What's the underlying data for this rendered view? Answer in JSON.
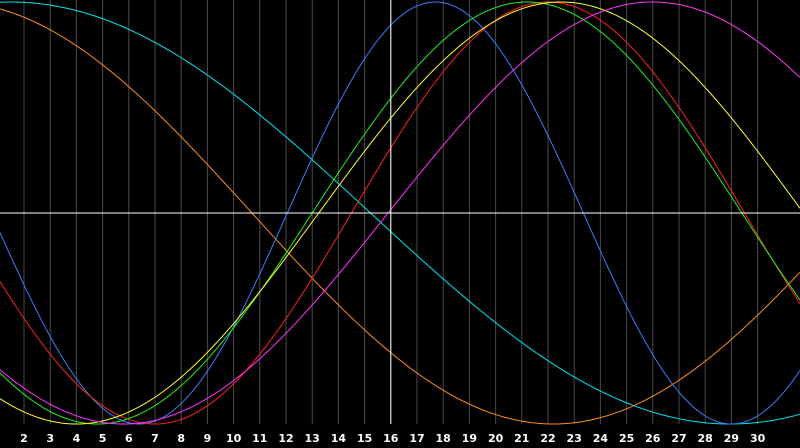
{
  "chart_data": {
    "type": "line",
    "title": "",
    "xlabel": "",
    "ylabel": "",
    "xlim": [
      1.1,
      31.5
    ],
    "ylim": [
      -1,
      1
    ],
    "x_ticks": [
      2,
      3,
      4,
      5,
      6,
      7,
      8,
      9,
      10,
      11,
      12,
      13,
      14,
      15,
      16,
      17,
      18,
      19,
      20,
      21,
      22,
      23,
      24,
      25,
      26,
      27,
      28,
      29,
      30
    ],
    "x_tick_labels": [
      "2",
      "3",
      "4",
      "5",
      "6",
      "7",
      "8",
      "9",
      "10",
      "11",
      "12",
      "13",
      "14",
      "15",
      "16",
      "17",
      "18",
      "19",
      "20",
      "21",
      "22",
      "23",
      "24",
      "25",
      "26",
      "27",
      "28",
      "29",
      "30"
    ],
    "crosshair": {
      "x": 16,
      "y": 0
    },
    "grid": true,
    "background": "#000000",
    "grid_color": "#4a4a4a",
    "crosshair_color": "#ffffff",
    "series": [
      {
        "color": "#00e5ee",
        "period": 54.9,
        "peak_day": 1.5
      },
      {
        "color": "#ff8c1a",
        "period": 46.0,
        "peak_day": -0.8
      },
      {
        "color": "#3a7dff",
        "period": 22.6,
        "peak_day": 17.7
      },
      {
        "color": "#ff2020",
        "period": 30.0,
        "peak_day": 22.0
      },
      {
        "color": "#22ee22",
        "period": 32.8,
        "peak_day": 21.2
      },
      {
        "color": "#ffff33",
        "period": 37.0,
        "peak_day": 22.5
      },
      {
        "color": "#ff33ff",
        "period": 40.4,
        "peak_day": 26.0
      }
    ]
  }
}
